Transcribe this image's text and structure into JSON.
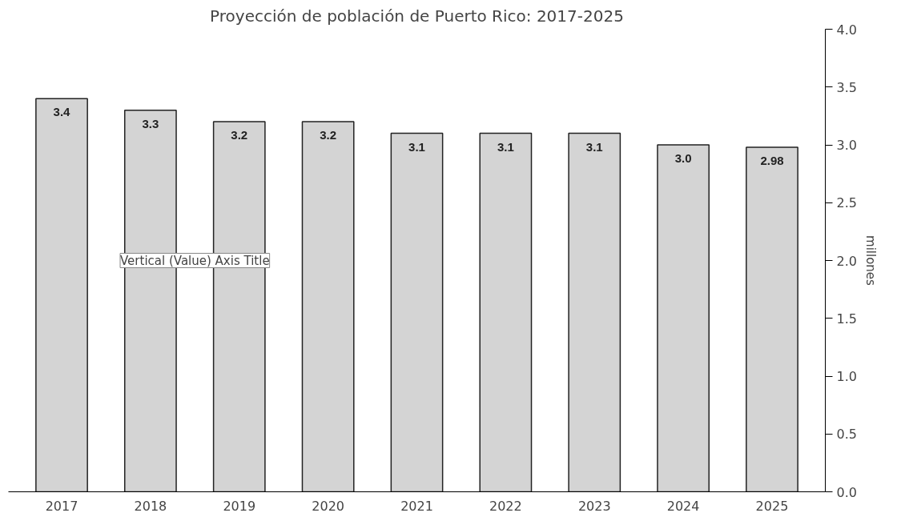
{
  "chart_data": {
    "type": "bar",
    "title": "Proyección de población de Puerto Rico: 2017-2025",
    "ylabel": "millones",
    "categories": [
      "2017",
      "2018",
      "2019",
      "2020",
      "2021",
      "2022",
      "2023",
      "2024",
      "2025"
    ],
    "values": [
      3.4,
      3.3,
      3.2,
      3.2,
      3.1,
      3.1,
      3.1,
      3.0,
      2.98
    ],
    "value_labels": [
      "3.4",
      "3.3",
      "3.2",
      "3.2",
      "3.1",
      "3.1",
      "3.1",
      "3.0",
      "2.98"
    ],
    "color": "#d4d4d4",
    "ylim": [
      0,
      4.0
    ],
    "yticks": [
      {
        "value": 0,
        "label": "0.0"
      },
      0.5,
      {
        "value": 1,
        "label": "1.0"
      },
      1.5,
      {
        "value": 2,
        "label": "2.0"
      },
      2.5,
      {
        "value": 3,
        "label": "3.0"
      },
      3.5,
      {
        "value": 4,
        "label": "4.0"
      }
    ],
    "grid": false,
    "annotations": [
      "Vertical (Value) Axis Title"
    ]
  }
}
